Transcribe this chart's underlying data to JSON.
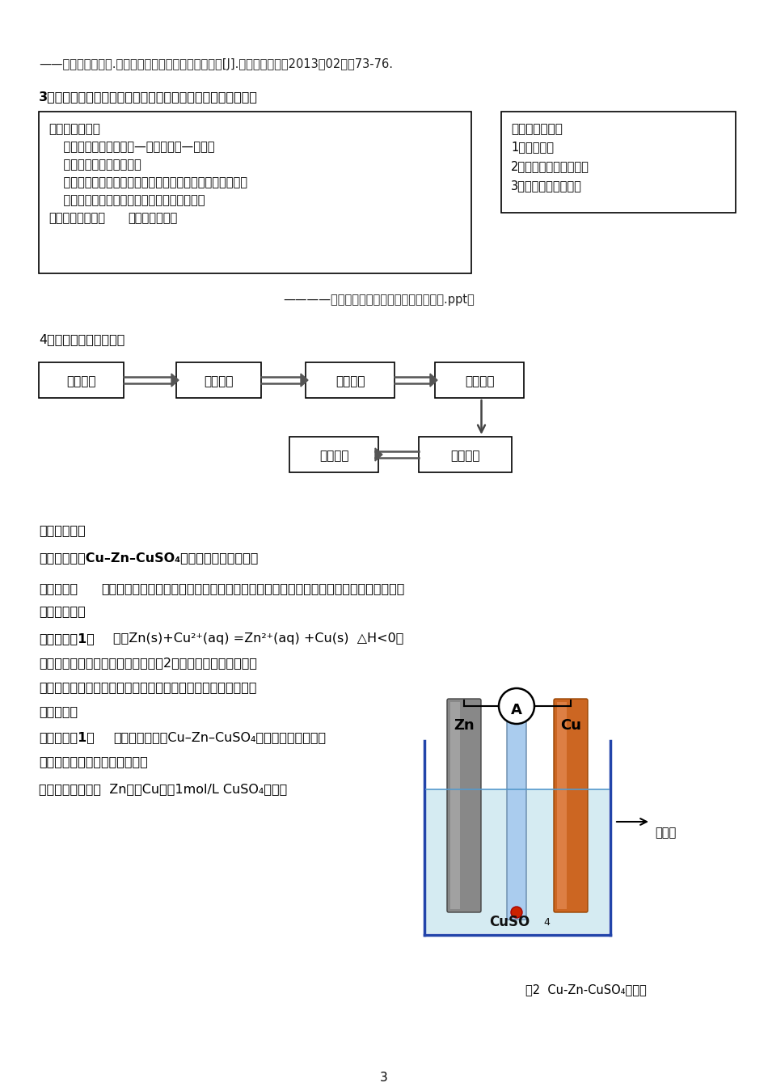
{
  "page_bg": "#ffffff",
  "top_ref": "——张丙香，渕华林.化学三重表征的含义及其教学策略[J].中学教育学刊，2013（02）：73-76.",
  "section3_title": "3、基于科学取向教学论的原理课教学的学习策略和教学结构：",
  "left_box_title": "显性教学任务：",
  "left_box_lines": [
    "    知道原理是什么（如果—那么，原因—结果）",
    "    知道原理为什么是这样的",
    "    运用原理去办事（解释、预测或控制变量之间的相互作用）",
    "    辨明新原理与有关原理的关系，形成原理系统"
  ],
  "left_box_bold_line": "原理的学习方式：",
  "left_box_bold_rest": "例规法、规例法",
  "right_box_title": "一般教学结构：",
  "right_box_lines": [
    "1、获得原理",
    "2、形成运用原理的程序",
    "3、运用原理对外办事"
  ],
  "attribution": "————李南萍老师《中学化学基本课型研究.ppt》",
  "section4_title": "4、本节内容的教学流程",
  "flow_row1": [
    "复习回顾",
    "设计实验",
    "探究实验",
    "修正方案"
  ],
  "flow_row2": [
    "应用原理",
    "获得原理"
  ],
  "section_four": "四、教学过程",
  "env1": "环节一、组装Cu–Zn–CuSO₄单液电池并进行实验。",
  "design_label": "设计目的：",
  "design_line1": "回忆原电池的构成条件、培养系统观察和描述实验现象的能力，引出单液原电池能量转化",
  "design_line2": "率低的问题。",
  "act1_label": "《学生活动1》",
  "act1_line1": "已知Zn(s)+Cu²⁺(aq) =Zn²⁺(aq) +Cu(s)  △H<0，",
  "act1_line2": "用以下药品和仪器组装原电池（如图2），记录实验现象（注意",
  "act1_line3": "观察锅片表面、温度计读数和电流表的读数变化），写出电极反",
  "act1_line4": "应方程式。",
  "exp1_label": "《学生实验1》",
  "exp1_line1": "实验目的：通过Cu–Zn–CuSO₄原电池实验，发现单",
  "exp1_line2": "液原电池能量转化率低的问题。",
  "reagents": "实验药品和仪器：  Zn片，Cu片，1mol/L CuSO₄溶液，",
  "fig_caption": "图2  Cu-Zn-CuSO₄原电池",
  "page_number": "3"
}
